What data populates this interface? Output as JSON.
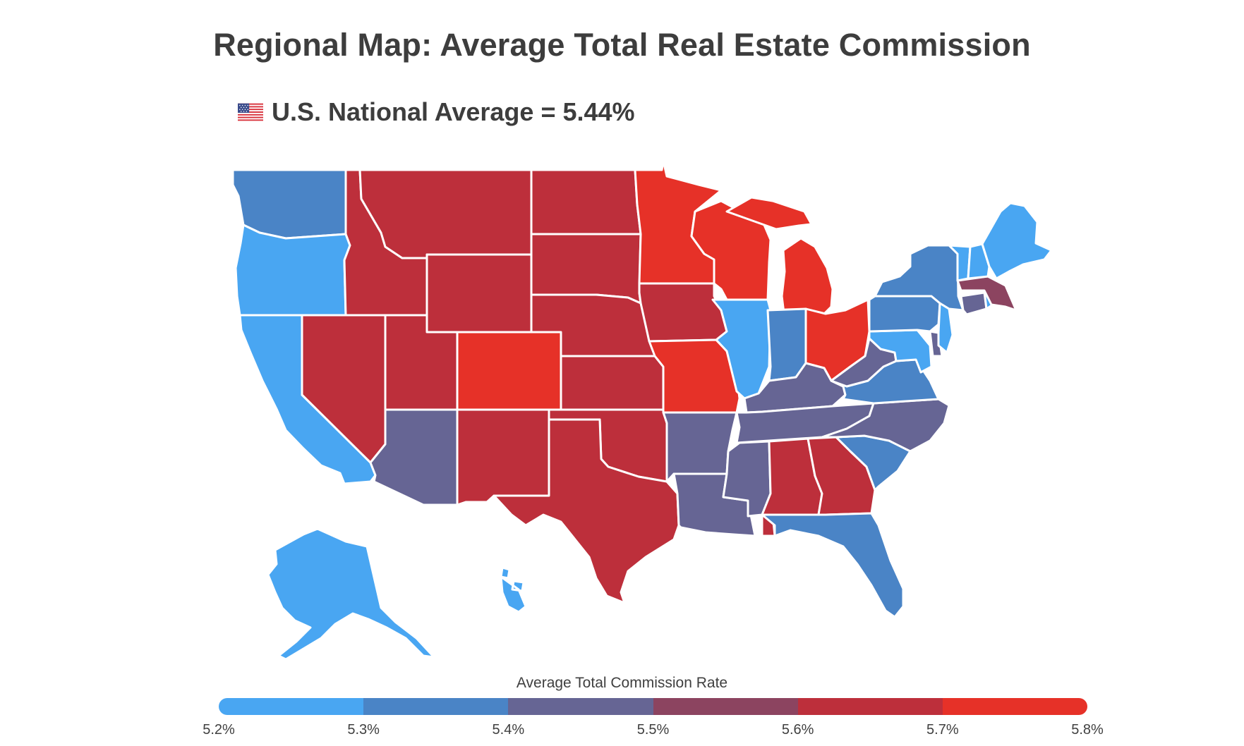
{
  "title": "Regional Map: Average Total Real Estate Commission",
  "national_average": {
    "flag_icon": "us-flag-icon",
    "text": "U.S. National Average = 5.44%"
  },
  "legend": {
    "title": "Average Total Commission Rate",
    "bins": [
      {
        "from": 5.2,
        "to": 5.3,
        "color": "#49a6f2"
      },
      {
        "from": 5.3,
        "to": 5.4,
        "color": "#4a84c6"
      },
      {
        "from": 5.4,
        "to": 5.5,
        "color": "#666594"
      },
      {
        "from": 5.5,
        "to": 5.6,
        "color": "#8c4460"
      },
      {
        "from": 5.6,
        "to": 5.7,
        "color": "#bd2f3b"
      },
      {
        "from": 5.7,
        "to": 5.8,
        "color": "#e63128"
      }
    ],
    "ticks": [
      "5.2%",
      "5.3%",
      "5.4%",
      "5.5%",
      "5.6%",
      "5.7%",
      "5.8%"
    ]
  },
  "chart_data": {
    "type": "choropleth",
    "metric": "Average Total Commission Rate",
    "national_average": 5.44,
    "scale_range": [
      5.2,
      5.8
    ],
    "regions": [
      {
        "state": "WA",
        "bin": [
          5.3,
          5.4
        ]
      },
      {
        "state": "OR",
        "bin": [
          5.2,
          5.3
        ]
      },
      {
        "state": "CA",
        "bin": [
          5.2,
          5.3
        ]
      },
      {
        "state": "AK",
        "bin": [
          5.2,
          5.3
        ]
      },
      {
        "state": "HI",
        "bin": [
          5.2,
          5.3
        ]
      },
      {
        "state": "ID",
        "bin": [
          5.6,
          5.7
        ]
      },
      {
        "state": "NV",
        "bin": [
          5.6,
          5.7
        ]
      },
      {
        "state": "MT",
        "bin": [
          5.6,
          5.7
        ]
      },
      {
        "state": "WY",
        "bin": [
          5.6,
          5.7
        ]
      },
      {
        "state": "UT",
        "bin": [
          5.6,
          5.7
        ]
      },
      {
        "state": "CO",
        "bin": [
          5.7,
          5.8
        ]
      },
      {
        "state": "AZ",
        "bin": [
          5.4,
          5.5
        ]
      },
      {
        "state": "NM",
        "bin": [
          5.6,
          5.7
        ]
      },
      {
        "state": "ND",
        "bin": [
          5.6,
          5.7
        ]
      },
      {
        "state": "SD",
        "bin": [
          5.6,
          5.7
        ]
      },
      {
        "state": "NE",
        "bin": [
          5.6,
          5.7
        ]
      },
      {
        "state": "KS",
        "bin": [
          5.6,
          5.7
        ]
      },
      {
        "state": "OK",
        "bin": [
          5.6,
          5.7
        ]
      },
      {
        "state": "TX",
        "bin": [
          5.6,
          5.7
        ]
      },
      {
        "state": "MN",
        "bin": [
          5.7,
          5.8
        ]
      },
      {
        "state": "IA",
        "bin": [
          5.6,
          5.7
        ]
      },
      {
        "state": "MO",
        "bin": [
          5.7,
          5.8
        ]
      },
      {
        "state": "AR",
        "bin": [
          5.4,
          5.5
        ]
      },
      {
        "state": "LA",
        "bin": [
          5.4,
          5.5
        ]
      },
      {
        "state": "WI",
        "bin": [
          5.7,
          5.8
        ]
      },
      {
        "state": "MI",
        "bin": [
          5.7,
          5.8
        ]
      },
      {
        "state": "IL",
        "bin": [
          5.2,
          5.3
        ]
      },
      {
        "state": "IN",
        "bin": [
          5.3,
          5.4
        ]
      },
      {
        "state": "OH",
        "bin": [
          5.7,
          5.8
        ]
      },
      {
        "state": "KY",
        "bin": [
          5.4,
          5.5
        ]
      },
      {
        "state": "TN",
        "bin": [
          5.4,
          5.5
        ]
      },
      {
        "state": "MS",
        "bin": [
          5.4,
          5.5
        ]
      },
      {
        "state": "AL",
        "bin": [
          5.6,
          5.7
        ]
      },
      {
        "state": "GA",
        "bin": [
          5.6,
          5.7
        ]
      },
      {
        "state": "FL",
        "bin": [
          5.3,
          5.4
        ]
      },
      {
        "state": "SC",
        "bin": [
          5.3,
          5.4
        ]
      },
      {
        "state": "NC",
        "bin": [
          5.4,
          5.5
        ]
      },
      {
        "state": "VA",
        "bin": [
          5.3,
          5.4
        ]
      },
      {
        "state": "WV",
        "bin": [
          5.4,
          5.5
        ]
      },
      {
        "state": "MD",
        "bin": [
          5.2,
          5.3
        ]
      },
      {
        "state": "DE",
        "bin": [
          5.4,
          5.5
        ]
      },
      {
        "state": "PA",
        "bin": [
          5.3,
          5.4
        ]
      },
      {
        "state": "NJ",
        "bin": [
          5.2,
          5.3
        ]
      },
      {
        "state": "NY",
        "bin": [
          5.3,
          5.4
        ]
      },
      {
        "state": "CT",
        "bin": [
          5.4,
          5.5
        ]
      },
      {
        "state": "RI",
        "bin": [
          5.2,
          5.3
        ]
      },
      {
        "state": "MA",
        "bin": [
          5.5,
          5.6
        ]
      },
      {
        "state": "VT",
        "bin": [
          5.2,
          5.3
        ]
      },
      {
        "state": "NH",
        "bin": [
          5.2,
          5.3
        ]
      },
      {
        "state": "ME",
        "bin": [
          5.2,
          5.3
        ]
      }
    ]
  }
}
